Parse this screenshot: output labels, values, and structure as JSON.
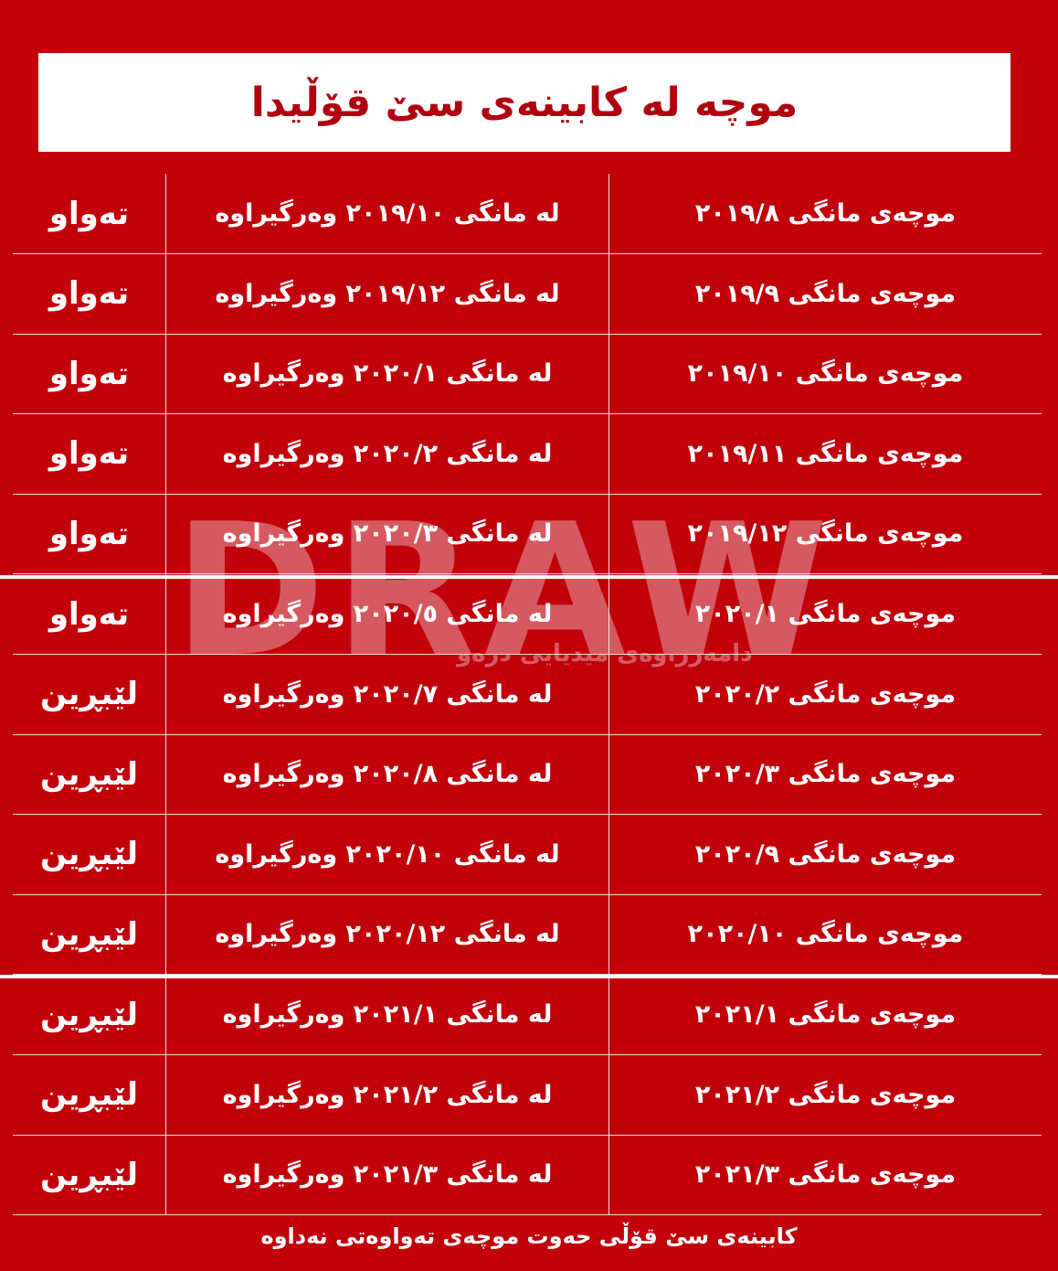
{
  "header": {
    "title": "موچە لە کابینەی سێ قۆڵیدا"
  },
  "table": {
    "rows": [
      [
        "موچەی مانگی ٢٠١٩/٨",
        "لە مانگی ٢٠١٩/١٠ وەرگیراوە",
        "تەواو"
      ],
      [
        "موچەی مانگی ٢٠١٩/٩",
        "لە مانگی ٢٠١٩/١٢ وەرگیراوە",
        "تەواو"
      ],
      [
        "موچەی مانگی ٢٠١٩/١٠",
        "لە مانگی ٢٠٢٠/١ وەرگیراوە",
        "تەواو"
      ],
      [
        "موچەی مانگی ٢٠١٩/١١",
        "لە مانگی ٢٠٢٠/٢ وەرگیراوە",
        "تەواو"
      ],
      [
        "موچەی مانگی ٢٠١٩/١٢",
        "لە مانگی ٢٠٢٠/٣ وەرگیراوە",
        "تەواو"
      ],
      [
        "موچەی مانگی ٢٠٢٠/١",
        "لە مانگی ٢٠٢٠/٥ وەرگیراوە",
        "تەواو"
      ],
      [
        "موچەی مانگی ٢٠٢٠/٢",
        "لە مانگی ٢٠٢٠/٧ وەرگیراوە",
        "لێبڕین"
      ],
      [
        "موچەی مانگی ٢٠٢٠/٣",
        "لە مانگی ٢٠٢٠/٨ وەرگیراوە",
        "لێبڕین"
      ],
      [
        "موچەی مانگی ٢٠٢٠/٩",
        "لە مانگی ٢٠٢٠/١٠ وەرگیراوە",
        "لێبڕین"
      ],
      [
        "موچەی مانگی ٢٠٢٠/١٠",
        "لە مانگی ٢٠٢٠/١٢ وەرگیراوە",
        "لێبڕین"
      ],
      [
        "موچەی مانگی ٢٠٢١/١",
        "لە مانگی ٢٠٢١/١ وەرگیراوە",
        "لێبڕین"
      ],
      [
        "موچەی مانگی ٢٠٢١/٢",
        "لە مانگی ٢٠٢١/٢ وەرگیراوە",
        "لێبڕین"
      ],
      [
        "موچەی مانگی ٢٠٢١/٣",
        "لە مانگی ٢٠٢١/٣ وەرگیراوە",
        "لێبڕین"
      ]
    ]
  },
  "watermark": {
    "logo": "DRAW",
    "tagline": "دامەزراوەی میدیایی درەو"
  },
  "footer": {
    "note": "کابینەی سێ قۆڵی حەوت موچەی تەواوەتی نەداوە"
  }
}
